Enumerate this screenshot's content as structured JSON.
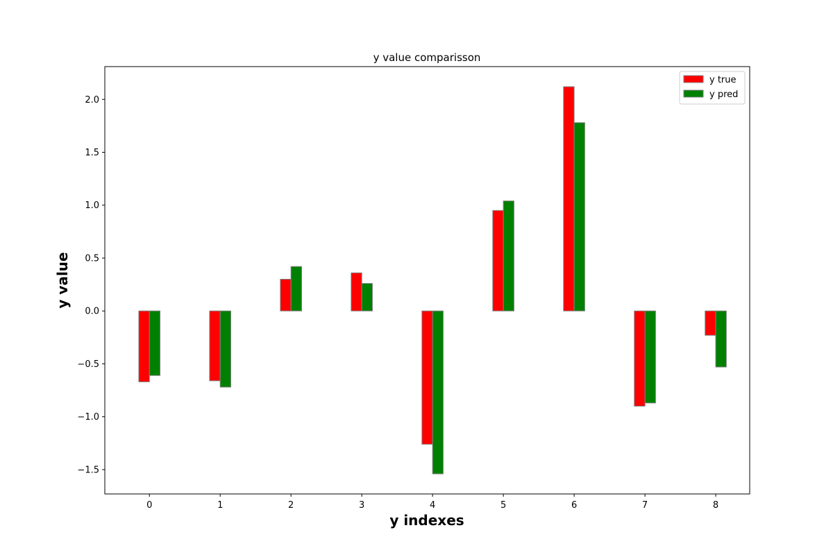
{
  "chart_data": {
    "type": "bar",
    "title": "y value comparisson",
    "xlabel": "y indexes",
    "ylabel": "y value",
    "categories": [
      "0",
      "1",
      "2",
      "3",
      "4",
      "5",
      "6",
      "7",
      "8"
    ],
    "series": [
      {
        "name": "y true",
        "color": "#ff0000",
        "values": [
          -0.67,
          -0.66,
          0.3,
          0.36,
          -1.26,
          0.95,
          2.12,
          -0.9,
          -0.23
        ]
      },
      {
        "name": "y pred",
        "color": "#008000",
        "values": [
          -0.61,
          -0.72,
          0.42,
          0.26,
          -1.54,
          1.04,
          1.78,
          -0.87,
          -0.53
        ]
      }
    ],
    "ylim": [
      -1.73,
      2.31
    ],
    "yticks": [
      -1.5,
      -1.0,
      -0.5,
      0.0,
      0.5,
      1.0,
      1.5,
      2.0
    ],
    "ytick_labels": [
      "−1.5",
      "−1.0",
      "−0.5",
      "0.0",
      "0.5",
      "1.0",
      "1.5",
      "2.0"
    ],
    "xlim": [
      -0.63,
      8.48
    ],
    "bar_edge_color": "#808080",
    "grid": false,
    "legend_position": "top-right"
  }
}
